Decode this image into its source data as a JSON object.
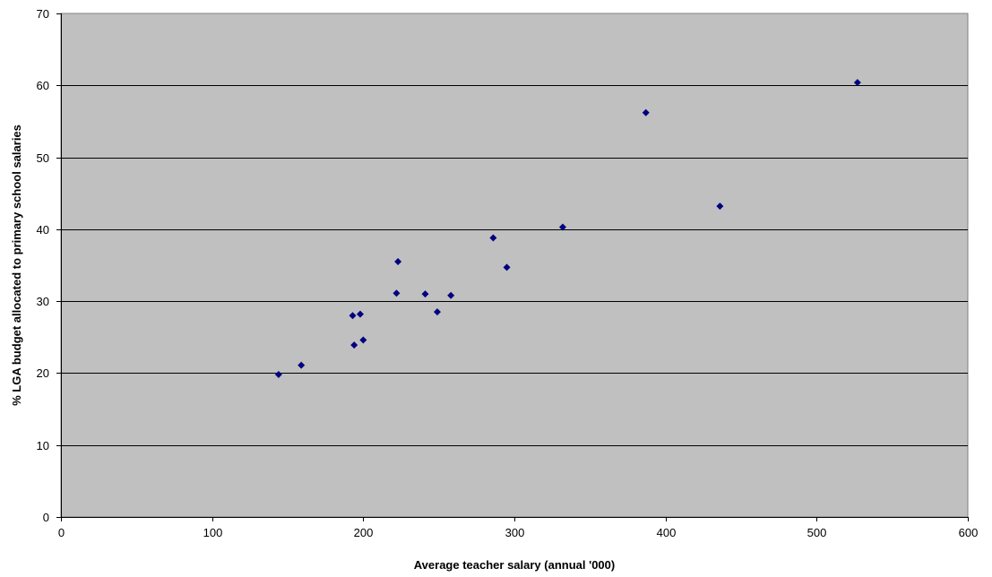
{
  "chart_data": {
    "type": "scatter",
    "title": "",
    "xlabel": "Average teacher salary (annual '000)",
    "ylabel": "% LGA budget allocated to primary school salaries",
    "xlim": [
      0,
      600
    ],
    "ylim": [
      0,
      70
    ],
    "x_ticks": [
      0,
      100,
      200,
      300,
      400,
      500,
      600
    ],
    "y_ticks": [
      0,
      10,
      20,
      30,
      40,
      50,
      60,
      70
    ],
    "grid": "horizontal",
    "legend": "none",
    "plot_background": "#c0c0c0",
    "marker_color": "#000080",
    "marker_shape": "diamond",
    "points": [
      {
        "x": 144,
        "y": 19.8
      },
      {
        "x": 159,
        "y": 21.1
      },
      {
        "x": 193,
        "y": 28.0
      },
      {
        "x": 194,
        "y": 23.9
      },
      {
        "x": 198,
        "y": 28.2
      },
      {
        "x": 200,
        "y": 24.6
      },
      {
        "x": 222,
        "y": 31.1
      },
      {
        "x": 223,
        "y": 35.5
      },
      {
        "x": 241,
        "y": 31.0
      },
      {
        "x": 249,
        "y": 28.5
      },
      {
        "x": 258,
        "y": 30.8
      },
      {
        "x": 286,
        "y": 38.8
      },
      {
        "x": 295,
        "y": 34.7
      },
      {
        "x": 332,
        "y": 40.3
      },
      {
        "x": 387,
        "y": 56.2
      },
      {
        "x": 436,
        "y": 43.2
      },
      {
        "x": 527,
        "y": 60.4
      }
    ]
  }
}
